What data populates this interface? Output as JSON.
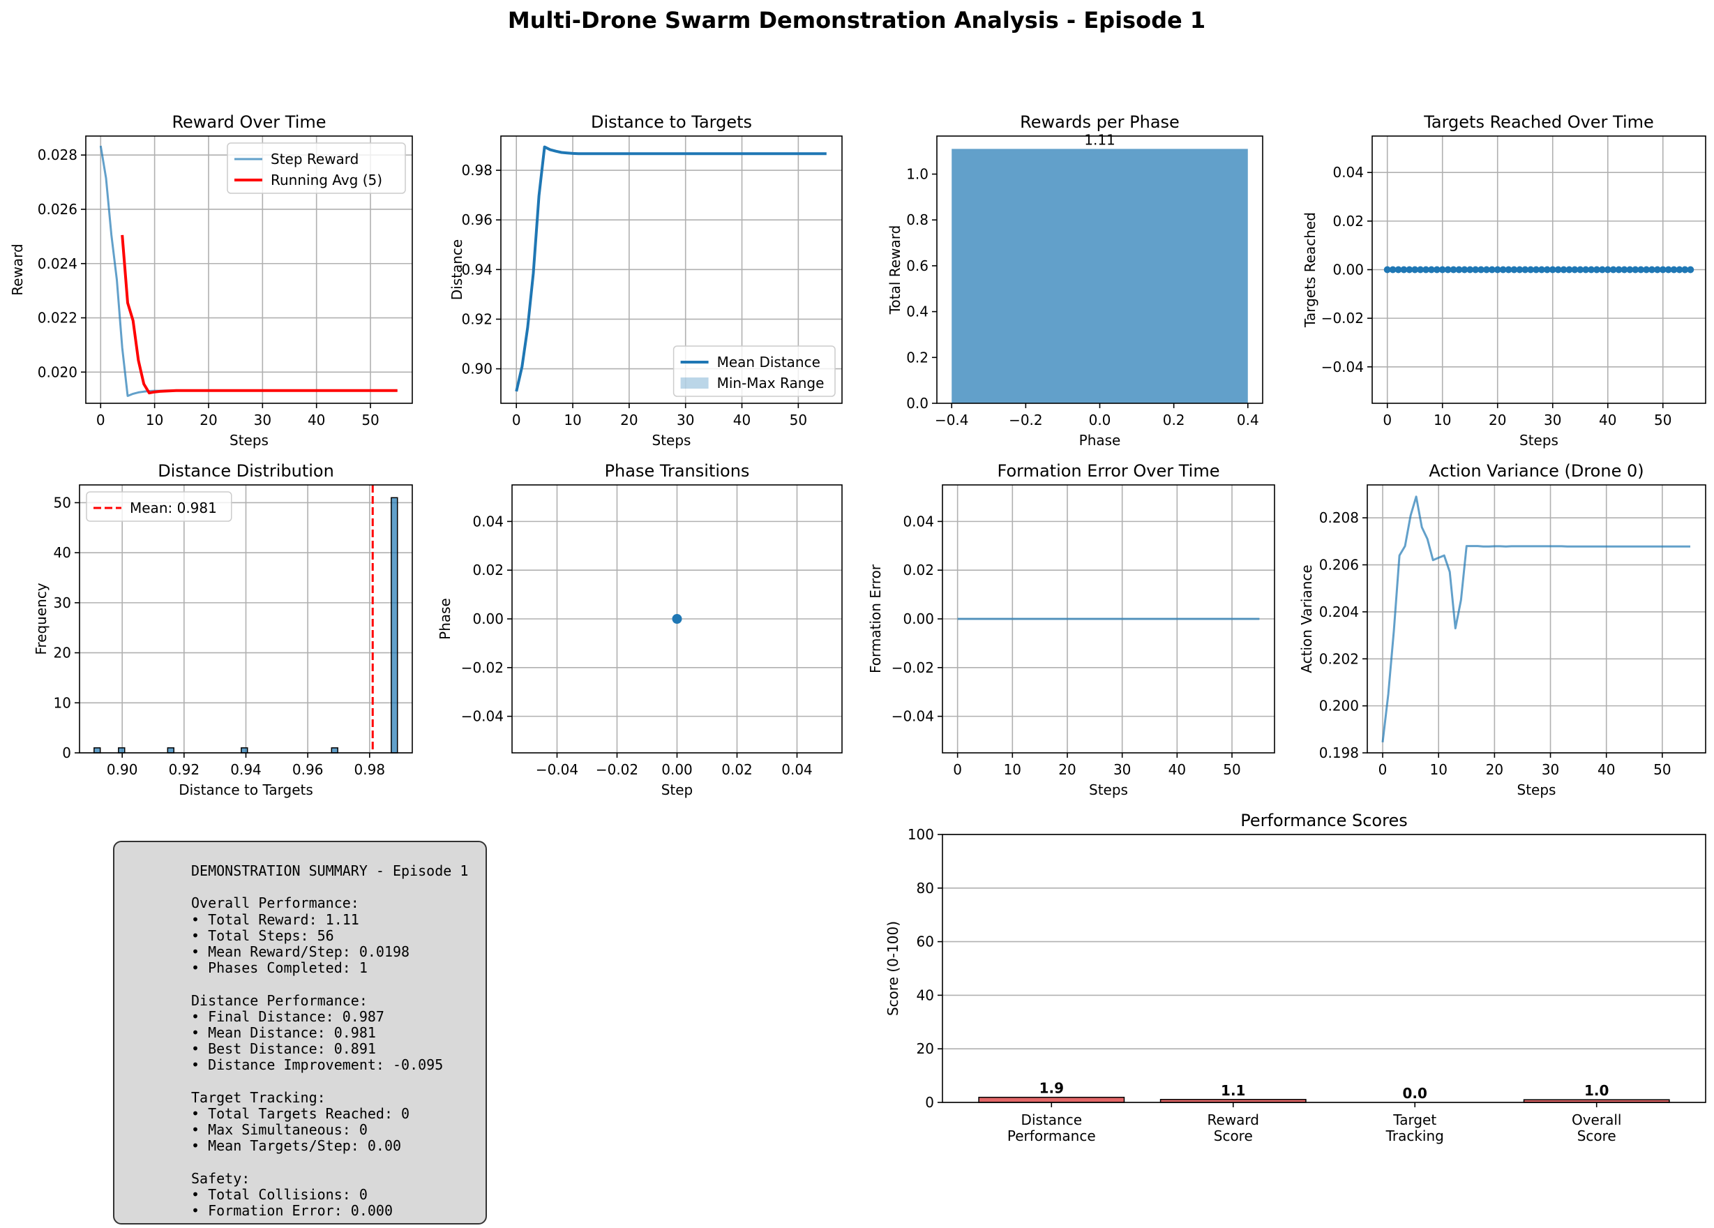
{
  "figure_title": "Multi-Drone Swarm Demonstration Analysis - Episode 1",
  "chart_data": [
    {
      "id": "reward",
      "type": "line",
      "title": "Reward Over Time",
      "xlabel": "Steps",
      "ylabel": "Reward",
      "xlim": [
        -2.75,
        57.75
      ],
      "ylim": [
        0.01885,
        0.0287
      ],
      "xticks": [
        0,
        10,
        20,
        30,
        40,
        50
      ],
      "yticks": [
        0.02,
        0.022,
        0.024,
        0.026,
        0.028
      ],
      "ytick_decimals": 3,
      "grid": true,
      "legend": "upper right",
      "series": [
        {
          "name": "Step Reward",
          "color": "#1f77b4",
          "alpha": 0.7,
          "width": 3,
          "x": [
            0,
            1,
            2,
            3,
            4,
            5,
            6,
            7,
            8,
            9,
            10,
            11,
            12,
            13,
            14,
            15,
            16,
            17,
            18,
            19,
            20,
            21,
            22,
            23,
            24,
            25,
            26,
            27,
            28,
            29,
            30,
            31,
            32,
            33,
            34,
            35,
            36,
            37,
            38,
            39,
            40,
            41,
            42,
            43,
            44,
            45,
            46,
            47,
            48,
            49,
            50,
            51,
            52,
            53,
            54,
            55
          ],
          "y": [
            0.02834,
            0.02715,
            0.02505,
            0.0234,
            0.0209,
            0.01912,
            0.0192,
            0.01925,
            0.01928,
            0.0193,
            0.01931,
            0.01931,
            0.01932,
            0.01932,
            0.01932,
            0.01932,
            0.01932,
            0.01932,
            0.01932,
            0.01932,
            0.01932,
            0.01932,
            0.01932,
            0.01932,
            0.01932,
            0.01932,
            0.01932,
            0.01932,
            0.01932,
            0.01932,
            0.01932,
            0.01932,
            0.01932,
            0.01932,
            0.01932,
            0.01932,
            0.01932,
            0.01932,
            0.01932,
            0.01932,
            0.01932,
            0.01932,
            0.01932,
            0.01932,
            0.01932,
            0.01932,
            0.01932,
            0.01932,
            0.01932,
            0.01932,
            0.01932,
            0.01932,
            0.01932,
            0.01932,
            0.01932,
            0.01932
          ]
        },
        {
          "name": "Running Avg (5)",
          "color": "#ff0000",
          "alpha": 1,
          "width": 4,
          "x": [
            4,
            5,
            6,
            7,
            8,
            9,
            10,
            11,
            12,
            13,
            14,
            15,
            16,
            17,
            18,
            19,
            20,
            21,
            22,
            23,
            24,
            25,
            26,
            27,
            28,
            29,
            30,
            31,
            32,
            33,
            34,
            35,
            36,
            37,
            38,
            39,
            40,
            41,
            42,
            43,
            44,
            45,
            46,
            47,
            48,
            49,
            50,
            51,
            52,
            53,
            54,
            55
          ],
          "y": [
            0.02505,
            0.02255,
            0.0219,
            0.02043,
            0.01956,
            0.01923,
            0.01927,
            0.01929,
            0.0193,
            0.01931,
            0.01932,
            0.01932,
            0.01932,
            0.01932,
            0.01932,
            0.01932,
            0.01932,
            0.01932,
            0.01932,
            0.01932,
            0.01932,
            0.01932,
            0.01932,
            0.01932,
            0.01932,
            0.01932,
            0.01932,
            0.01932,
            0.01932,
            0.01932,
            0.01932,
            0.01932,
            0.01932,
            0.01932,
            0.01932,
            0.01932,
            0.01932,
            0.01932,
            0.01932,
            0.01932,
            0.01932,
            0.01932,
            0.01932,
            0.01932,
            0.01932,
            0.01932,
            0.01932,
            0.01932,
            0.01932,
            0.01932,
            0.01932,
            0.01932
          ]
        }
      ]
    },
    {
      "id": "distance",
      "type": "line",
      "title": "Distance to Targets",
      "xlabel": "Steps",
      "ylabel": "Distance",
      "xlim": [
        -2.75,
        57.75
      ],
      "ylim": [
        0.8861,
        0.9938
      ],
      "xticks": [
        0,
        10,
        20,
        30,
        40,
        50
      ],
      "yticks": [
        0.9,
        0.92,
        0.94,
        0.96,
        0.98
      ],
      "ytick_decimals": 2,
      "grid": true,
      "legend": "lower right",
      "band": {
        "name": "Min-Max Range",
        "color": "#1f77b4",
        "alpha": 0.3
      },
      "series": [
        {
          "name": "Mean Distance",
          "color": "#1f77b4",
          "alpha": 1,
          "width": 4,
          "x": [
            0,
            1,
            2,
            3,
            4,
            5,
            6,
            7,
            8,
            9,
            10,
            11,
            12,
            13,
            14,
            15,
            16,
            17,
            18,
            19,
            20,
            21,
            22,
            23,
            24,
            25,
            26,
            27,
            28,
            29,
            30,
            31,
            32,
            33,
            34,
            35,
            36,
            37,
            38,
            39,
            40,
            41,
            42,
            43,
            44,
            45,
            46,
            47,
            48,
            49,
            50,
            51,
            52,
            53,
            54,
            55
          ],
          "y": [
            0.8909,
            0.9008,
            0.9167,
            0.9385,
            0.9697,
            0.9894,
            0.9883,
            0.9877,
            0.9872,
            0.987,
            0.9868,
            0.9867,
            0.9867,
            0.9867,
            0.9867,
            0.9867,
            0.9867,
            0.9867,
            0.9867,
            0.9867,
            0.9867,
            0.9867,
            0.9867,
            0.9867,
            0.9867,
            0.9867,
            0.9867,
            0.9867,
            0.9867,
            0.9867,
            0.9867,
            0.9867,
            0.9867,
            0.9867,
            0.9867,
            0.9867,
            0.9867,
            0.9867,
            0.9867,
            0.9867,
            0.9867,
            0.9867,
            0.9867,
            0.9867,
            0.9867,
            0.9867,
            0.9867,
            0.9867,
            0.9867,
            0.9867,
            0.9867,
            0.9867,
            0.9867,
            0.9867,
            0.9867,
            0.9867
          ]
        }
      ]
    },
    {
      "id": "phase_rewards",
      "type": "bar",
      "title": "Rewards per Phase",
      "xlabel": "Phase",
      "ylabel": "Total Reward",
      "xlim": [
        -0.44,
        0.44
      ],
      "ylim": [
        0,
        1.166
      ],
      "xticks": [
        -0.4,
        -0.2,
        0.0,
        0.2,
        0.4
      ],
      "xtick_decimals": 1,
      "yticks": [
        0.0,
        0.2,
        0.4,
        0.6,
        0.8,
        1.0
      ],
      "ytick_decimals": 1,
      "grid": false,
      "categories": [
        0
      ],
      "values": [
        1.11
      ],
      "bar_width": 0.8,
      "color": "#1f77b4",
      "alpha": 0.7,
      "value_labels": [
        "1.11"
      ]
    },
    {
      "id": "targets_reached",
      "type": "line",
      "title": "Targets Reached Over Time",
      "xlabel": "Steps",
      "ylabel": "Targets Reached",
      "xlim": [
        -2.75,
        57.75
      ],
      "ylim": [
        -0.055,
        0.055
      ],
      "xticks": [
        0,
        10,
        20,
        30,
        40,
        50
      ],
      "yticks": [
        -0.04,
        -0.02,
        0.0,
        0.02,
        0.04
      ],
      "ytick_decimals": 2,
      "grid": true,
      "series": [
        {
          "name": "",
          "color": "#1f77b4",
          "alpha": 1,
          "width": 3,
          "markers": true,
          "x": [
            0,
            1,
            2,
            3,
            4,
            5,
            6,
            7,
            8,
            9,
            10,
            11,
            12,
            13,
            14,
            15,
            16,
            17,
            18,
            19,
            20,
            21,
            22,
            23,
            24,
            25,
            26,
            27,
            28,
            29,
            30,
            31,
            32,
            33,
            34,
            35,
            36,
            37,
            38,
            39,
            40,
            41,
            42,
            43,
            44,
            45,
            46,
            47,
            48,
            49,
            50,
            51,
            52,
            53,
            54,
            55
          ],
          "y": [
            0,
            0,
            0,
            0,
            0,
            0,
            0,
            0,
            0,
            0,
            0,
            0,
            0,
            0,
            0,
            0,
            0,
            0,
            0,
            0,
            0,
            0,
            0,
            0,
            0,
            0,
            0,
            0,
            0,
            0,
            0,
            0,
            0,
            0,
            0,
            0,
            0,
            0,
            0,
            0,
            0,
            0,
            0,
            0,
            0,
            0,
            0,
            0,
            0,
            0,
            0,
            0,
            0,
            0,
            0,
            0
          ]
        }
      ]
    },
    {
      "id": "dist_hist",
      "type": "bar",
      "title": "Distance Distribution",
      "xlabel": "Distance to Targets",
      "ylabel": "Frequency",
      "xlim": [
        0.8862,
        0.9938
      ],
      "ylim": [
        0,
        53.55
      ],
      "xticks": [
        0.9,
        0.92,
        0.94,
        0.96,
        0.98
      ],
      "xtick_decimals": 2,
      "yticks": [
        0,
        10,
        20,
        30,
        40,
        50
      ],
      "ytick_decimals": 0,
      "grid": true,
      "legend": "upper left",
      "bins": [
        {
          "x0": 0.8909,
          "x1": 0.8929,
          "count": 1
        },
        {
          "x0": 0.8988,
          "x1": 0.9008,
          "count": 1
        },
        {
          "x0": 0.9147,
          "x1": 0.9167,
          "count": 1
        },
        {
          "x0": 0.9385,
          "x1": 0.9405,
          "count": 1
        },
        {
          "x0": 0.9677,
          "x1": 0.9697,
          "count": 1
        },
        {
          "x0": 0.987,
          "x1": 0.989,
          "count": 51
        }
      ],
      "color": "#1f77b4",
      "alpha": 0.7,
      "mean_line": {
        "value": 0.981,
        "label": "Mean: 0.981",
        "color": "#ff0000"
      }
    },
    {
      "id": "phase_transitions",
      "type": "scatter",
      "title": "Phase Transitions",
      "xlabel": "Step",
      "ylabel": "Phase",
      "xlim": [
        -0.055,
        0.055
      ],
      "ylim": [
        -0.055,
        0.055
      ],
      "xticks": [
        -0.04,
        -0.02,
        0.0,
        0.02,
        0.04
      ],
      "xtick_decimals": 2,
      "yticks": [
        -0.04,
        -0.02,
        0.0,
        0.02,
        0.04
      ],
      "ytick_decimals": 2,
      "grid": true,
      "series": [
        {
          "name": "",
          "color": "#1f77b4",
          "alpha": 1,
          "width": 3,
          "markers": true,
          "marker_r": 7,
          "x": [
            0
          ],
          "y": [
            0
          ]
        }
      ]
    },
    {
      "id": "formation_error",
      "type": "line",
      "title": "Formation Error Over Time",
      "xlabel": "Steps",
      "ylabel": "Formation Error",
      "xlim": [
        -2.75,
        57.75
      ],
      "ylim": [
        -0.055,
        0.055
      ],
      "xticks": [
        0,
        10,
        20,
        30,
        40,
        50
      ],
      "yticks": [
        -0.04,
        -0.02,
        0.0,
        0.02,
        0.04
      ],
      "ytick_decimals": 2,
      "grid": true,
      "series": [
        {
          "name": "",
          "color": "#1f77b4",
          "alpha": 0.7,
          "width": 3,
          "x": [
            0,
            55
          ],
          "y": [
            0,
            0
          ]
        }
      ]
    },
    {
      "id": "action_variance",
      "type": "line",
      "title": "Action Variance (Drone 0)",
      "xlabel": "Steps",
      "ylabel": "Action Variance",
      "xlim": [
        -2.75,
        57.75
      ],
      "ylim": [
        0.198,
        0.2094
      ],
      "xticks": [
        0,
        10,
        20,
        30,
        40,
        50
      ],
      "yticks": [
        0.198,
        0.2,
        0.202,
        0.204,
        0.206,
        0.208
      ],
      "ytick_decimals": 3,
      "grid": true,
      "series": [
        {
          "name": "",
          "color": "#1f77b4",
          "alpha": 0.7,
          "width": 3,
          "x": [
            0,
            1,
            2,
            3,
            4,
            5,
            6,
            7,
            8,
            9,
            10,
            11,
            12,
            13,
            14,
            15,
            16,
            17,
            18,
            19,
            20,
            21,
            22,
            23,
            24,
            25,
            26,
            27,
            28,
            29,
            30,
            31,
            32,
            33,
            34,
            35,
            36,
            37,
            38,
            39,
            40,
            41,
            42,
            43,
            44,
            45,
            46,
            47,
            48,
            49,
            50,
            51,
            52,
            53,
            54,
            55
          ],
          "y": [
            0.19845,
            0.2005,
            0.2032,
            0.2064,
            0.2068,
            0.2081,
            0.2089,
            0.2076,
            0.2071,
            0.2062,
            0.2063,
            0.2064,
            0.2057,
            0.2033,
            0.2045,
            0.2068,
            0.2068,
            0.2068,
            0.20678,
            0.20678,
            0.20679,
            0.20679,
            0.20678,
            0.20679,
            0.20679,
            0.20679,
            0.20679,
            0.20679,
            0.20679,
            0.20679,
            0.20679,
            0.20679,
            0.20679,
            0.20678,
            0.20678,
            0.20678,
            0.20678,
            0.20678,
            0.20678,
            0.20678,
            0.20678,
            0.20678,
            0.20678,
            0.20678,
            0.20678,
            0.20678,
            0.20678,
            0.20678,
            0.20678,
            0.20678,
            0.20678,
            0.20678,
            0.20678,
            0.20678,
            0.20678,
            0.20678
          ]
        }
      ]
    },
    {
      "id": "scores",
      "type": "bar",
      "title": "Performance Scores",
      "xlabel": "",
      "ylabel": "Score (0-100)",
      "xlim": [
        -0.6,
        3.6
      ],
      "ylim": [
        0,
        100
      ],
      "yticks": [
        0,
        20,
        40,
        60,
        80,
        100
      ],
      "ytick_decimals": 0,
      "grid": true,
      "grid_axis": "y",
      "categories": [
        "Distance\nPerformance",
        "Reward\nScore",
        "Target\nTracking",
        "Overall\nScore"
      ],
      "values": [
        1.9,
        1.1,
        0.0,
        1.0
      ],
      "value_labels": [
        "1.9",
        "1.1",
        "0.0",
        "1.0"
      ],
      "bar_width": 0.8,
      "color": "#d62728",
      "alpha": 0.7
    }
  ],
  "summary": {
    "lines": [
      "DEMONSTRATION SUMMARY - Episode 1",
      "",
      "Overall Performance:",
      "• Total Reward: 1.11",
      "• Total Steps: 56",
      "• Mean Reward/Step: 0.0198",
      "• Phases Completed: 1",
      "",
      "Distance Performance:",
      "• Final Distance: 0.987",
      "• Mean Distance: 0.981",
      "• Best Distance: 0.891",
      "• Distance Improvement: -0.095",
      "",
      "Target Tracking:",
      "• Total Targets Reached: 0",
      "• Max Simultaneous: 0",
      "• Mean Targets/Step: 0.00",
      "",
      "Safety:",
      "• Total Collisions: 0",
      "• Formation Error: 0.000"
    ]
  }
}
